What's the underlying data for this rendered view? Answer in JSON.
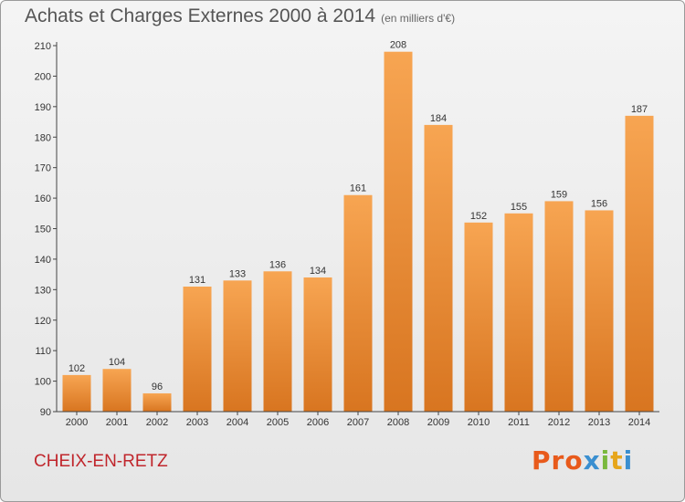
{
  "header": {
    "title": "Achats et Charges Externes 2000 à 2014",
    "unit": "(en milliers d'€)"
  },
  "footer": {
    "place": "CHEIX-EN-RETZ",
    "logo": "Proxiti"
  },
  "colors": {
    "bar_top": "#f7a552",
    "bar_bottom": "#d87520",
    "place_text": "#c0262c",
    "logo_letters": [
      "#e85a1b",
      "#e85a1b",
      "#e85a1b",
      "#3a8fd0",
      "#7ab83d",
      "#e6a51b",
      "#3a8fd0"
    ]
  },
  "chart_data": {
    "type": "bar",
    "title": "Achats et Charges Externes 2000 à 2014",
    "subtitle": "(en milliers d'€)",
    "xlabel": "",
    "ylabel": "",
    "categories": [
      "2000",
      "2001",
      "2002",
      "2003",
      "2004",
      "2005",
      "2006",
      "2007",
      "2008",
      "2009",
      "2010",
      "2011",
      "2012",
      "2013",
      "2014"
    ],
    "values": [
      102,
      104,
      96,
      131,
      133,
      136,
      134,
      161,
      208,
      184,
      152,
      155,
      159,
      156,
      187
    ],
    "ylim": [
      90,
      210
    ],
    "yticks": [
      90,
      100,
      110,
      120,
      130,
      140,
      150,
      160,
      170,
      180,
      190,
      200,
      210
    ],
    "grid": false,
    "data_labels": true
  }
}
